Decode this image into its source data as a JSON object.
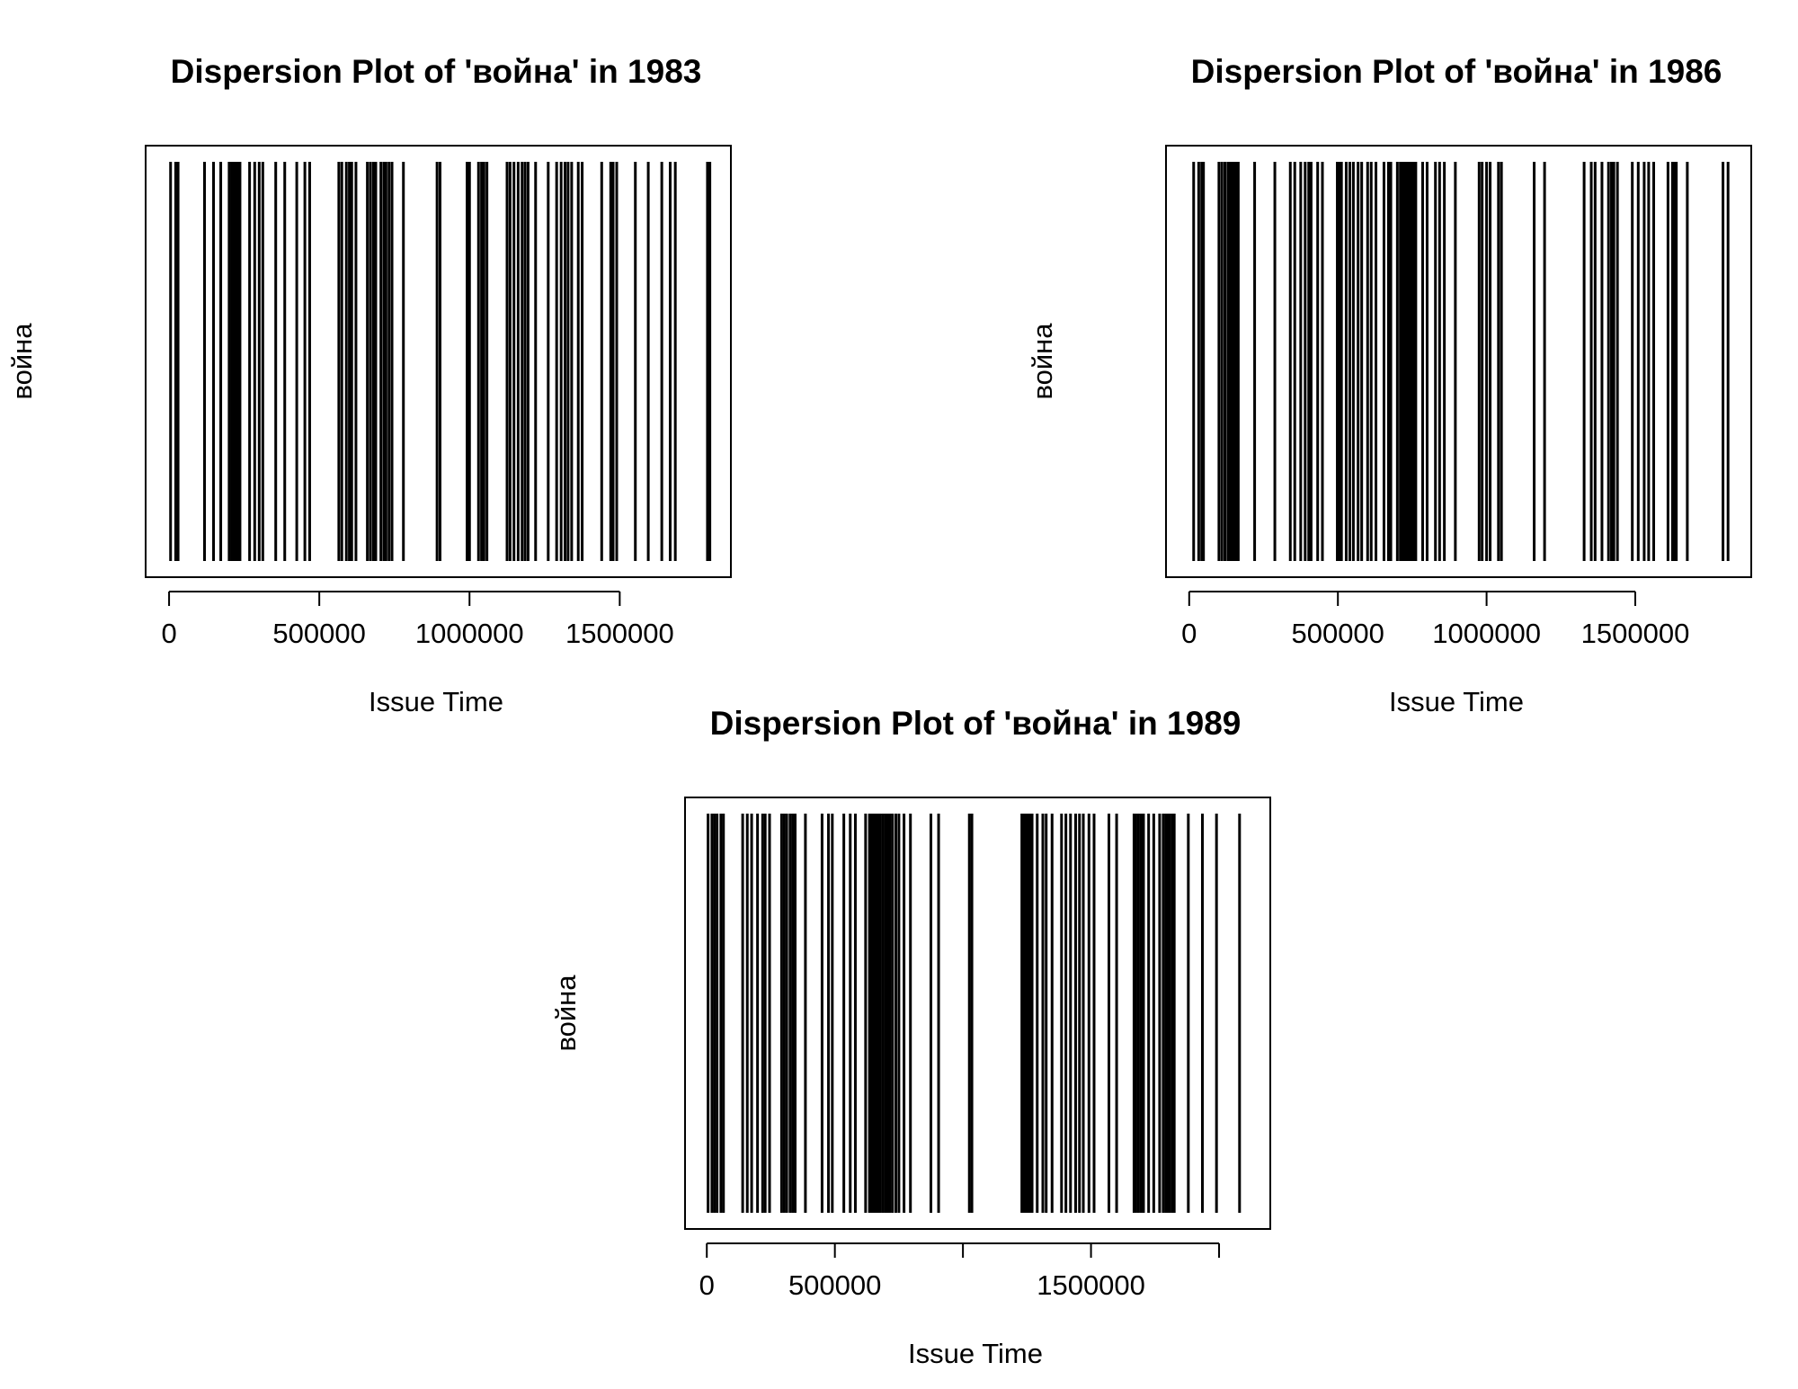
{
  "chart_data": [
    {
      "type": "dispersion",
      "title": "Dispersion Plot of 'война' in 1983",
      "xlabel": "Issue Time",
      "ylabel": "война",
      "xlim": [
        -78000,
        1870000
      ],
      "xticks": [
        0,
        500000,
        1000000,
        1500000
      ],
      "xtick_labels": [
        "0",
        "500000",
        "1000000",
        "1500000"
      ],
      "x": [
        5000,
        22000,
        30000,
        118000,
        148000,
        172000,
        200000,
        208000,
        215000,
        222000,
        229000,
        236000,
        268000,
        285000,
        300000,
        312000,
        355000,
        385000,
        425000,
        452000,
        468000,
        565000,
        575000,
        590000,
        600000,
        608000,
        622000,
        660000,
        670000,
        680000,
        688000,
        705000,
        715000,
        722000,
        732000,
        742000,
        780000,
        892000,
        902000,
        992000,
        1000000,
        1030000,
        1040000,
        1048000,
        1058000,
        1125000,
        1135000,
        1148000,
        1162000,
        1175000,
        1185000,
        1195000,
        1220000,
        1262000,
        1290000,
        1305000,
        1318000,
        1328000,
        1340000,
        1362000,
        1375000,
        1440000,
        1470000,
        1478000,
        1490000,
        1552000,
        1595000,
        1640000,
        1668000,
        1685000,
        1792000,
        1800000
      ]
    },
    {
      "type": "dispersion",
      "title": "Dispersion Plot of 'война' in 1986",
      "xlabel": "Issue Time",
      "ylabel": "война",
      "xlim": [
        -78000,
        1890000
      ],
      "xticks": [
        0,
        500000,
        1000000,
        1500000
      ],
      "xtick_labels": [
        "0",
        "500000",
        "1000000",
        "1500000"
      ],
      "x": [
        15000,
        32000,
        42000,
        48000,
        100000,
        110000,
        120000,
        130000,
        138000,
        145000,
        152000,
        158000,
        165000,
        220000,
        288000,
        340000,
        355000,
        375000,
        390000,
        402000,
        410000,
        432000,
        448000,
        498000,
        505000,
        512000,
        528000,
        540000,
        552000,
        568000,
        580000,
        600000,
        612000,
        628000,
        655000,
        670000,
        678000,
        700000,
        710000,
        715000,
        720000,
        725000,
        730000,
        735000,
        740000,
        745000,
        750000,
        755000,
        762000,
        785000,
        800000,
        828000,
        842000,
        858000,
        895000,
        975000,
        985000,
        1000000,
        1012000,
        1040000,
        1050000,
        1160000,
        1195000,
        1328000,
        1352000,
        1365000,
        1388000,
        1410000,
        1420000,
        1428000,
        1440000,
        1490000,
        1510000,
        1530000,
        1545000,
        1562000,
        1610000,
        1625000,
        1632000,
        1638000,
        1675000,
        1795000,
        1812000
      ]
    },
    {
      "type": "dispersion",
      "title": "Dispersion Plot of 'война' in 1989",
      "xlabel": "Issue Time",
      "ylabel": "война",
      "xlim": [
        -85000,
        2200000
      ],
      "xticks": [
        0,
        500000,
        1000000,
        1500000,
        2000000
      ],
      "xtick_labels": [
        "0",
        "500000",
        "",
        "1500000",
        ""
      ],
      "x": [
        5000,
        20000,
        30000,
        40000,
        55000,
        65000,
        140000,
        158000,
        175000,
        198000,
        218000,
        228000,
        245000,
        292000,
        302000,
        312000,
        325000,
        335000,
        345000,
        385000,
        450000,
        475000,
        490000,
        535000,
        560000,
        580000,
        620000,
        635000,
        640000,
        648000,
        655000,
        662000,
        670000,
        678000,
        688000,
        698000,
        705000,
        715000,
        725000,
        738000,
        750000,
        770000,
        795000,
        875000,
        905000,
        1025000,
        1035000,
        1230000,
        1240000,
        1248000,
        1255000,
        1262000,
        1270000,
        1290000,
        1312000,
        1325000,
        1348000,
        1385000,
        1402000,
        1420000,
        1440000,
        1455000,
        1470000,
        1492000,
        1512000,
        1570000,
        1600000,
        1668000,
        1675000,
        1685000,
        1695000,
        1705000,
        1725000,
        1745000,
        1768000,
        1782000,
        1792000,
        1800000,
        1808000,
        1818000,
        1825000,
        1880000,
        1935000,
        1990000,
        2080000
      ]
    }
  ]
}
